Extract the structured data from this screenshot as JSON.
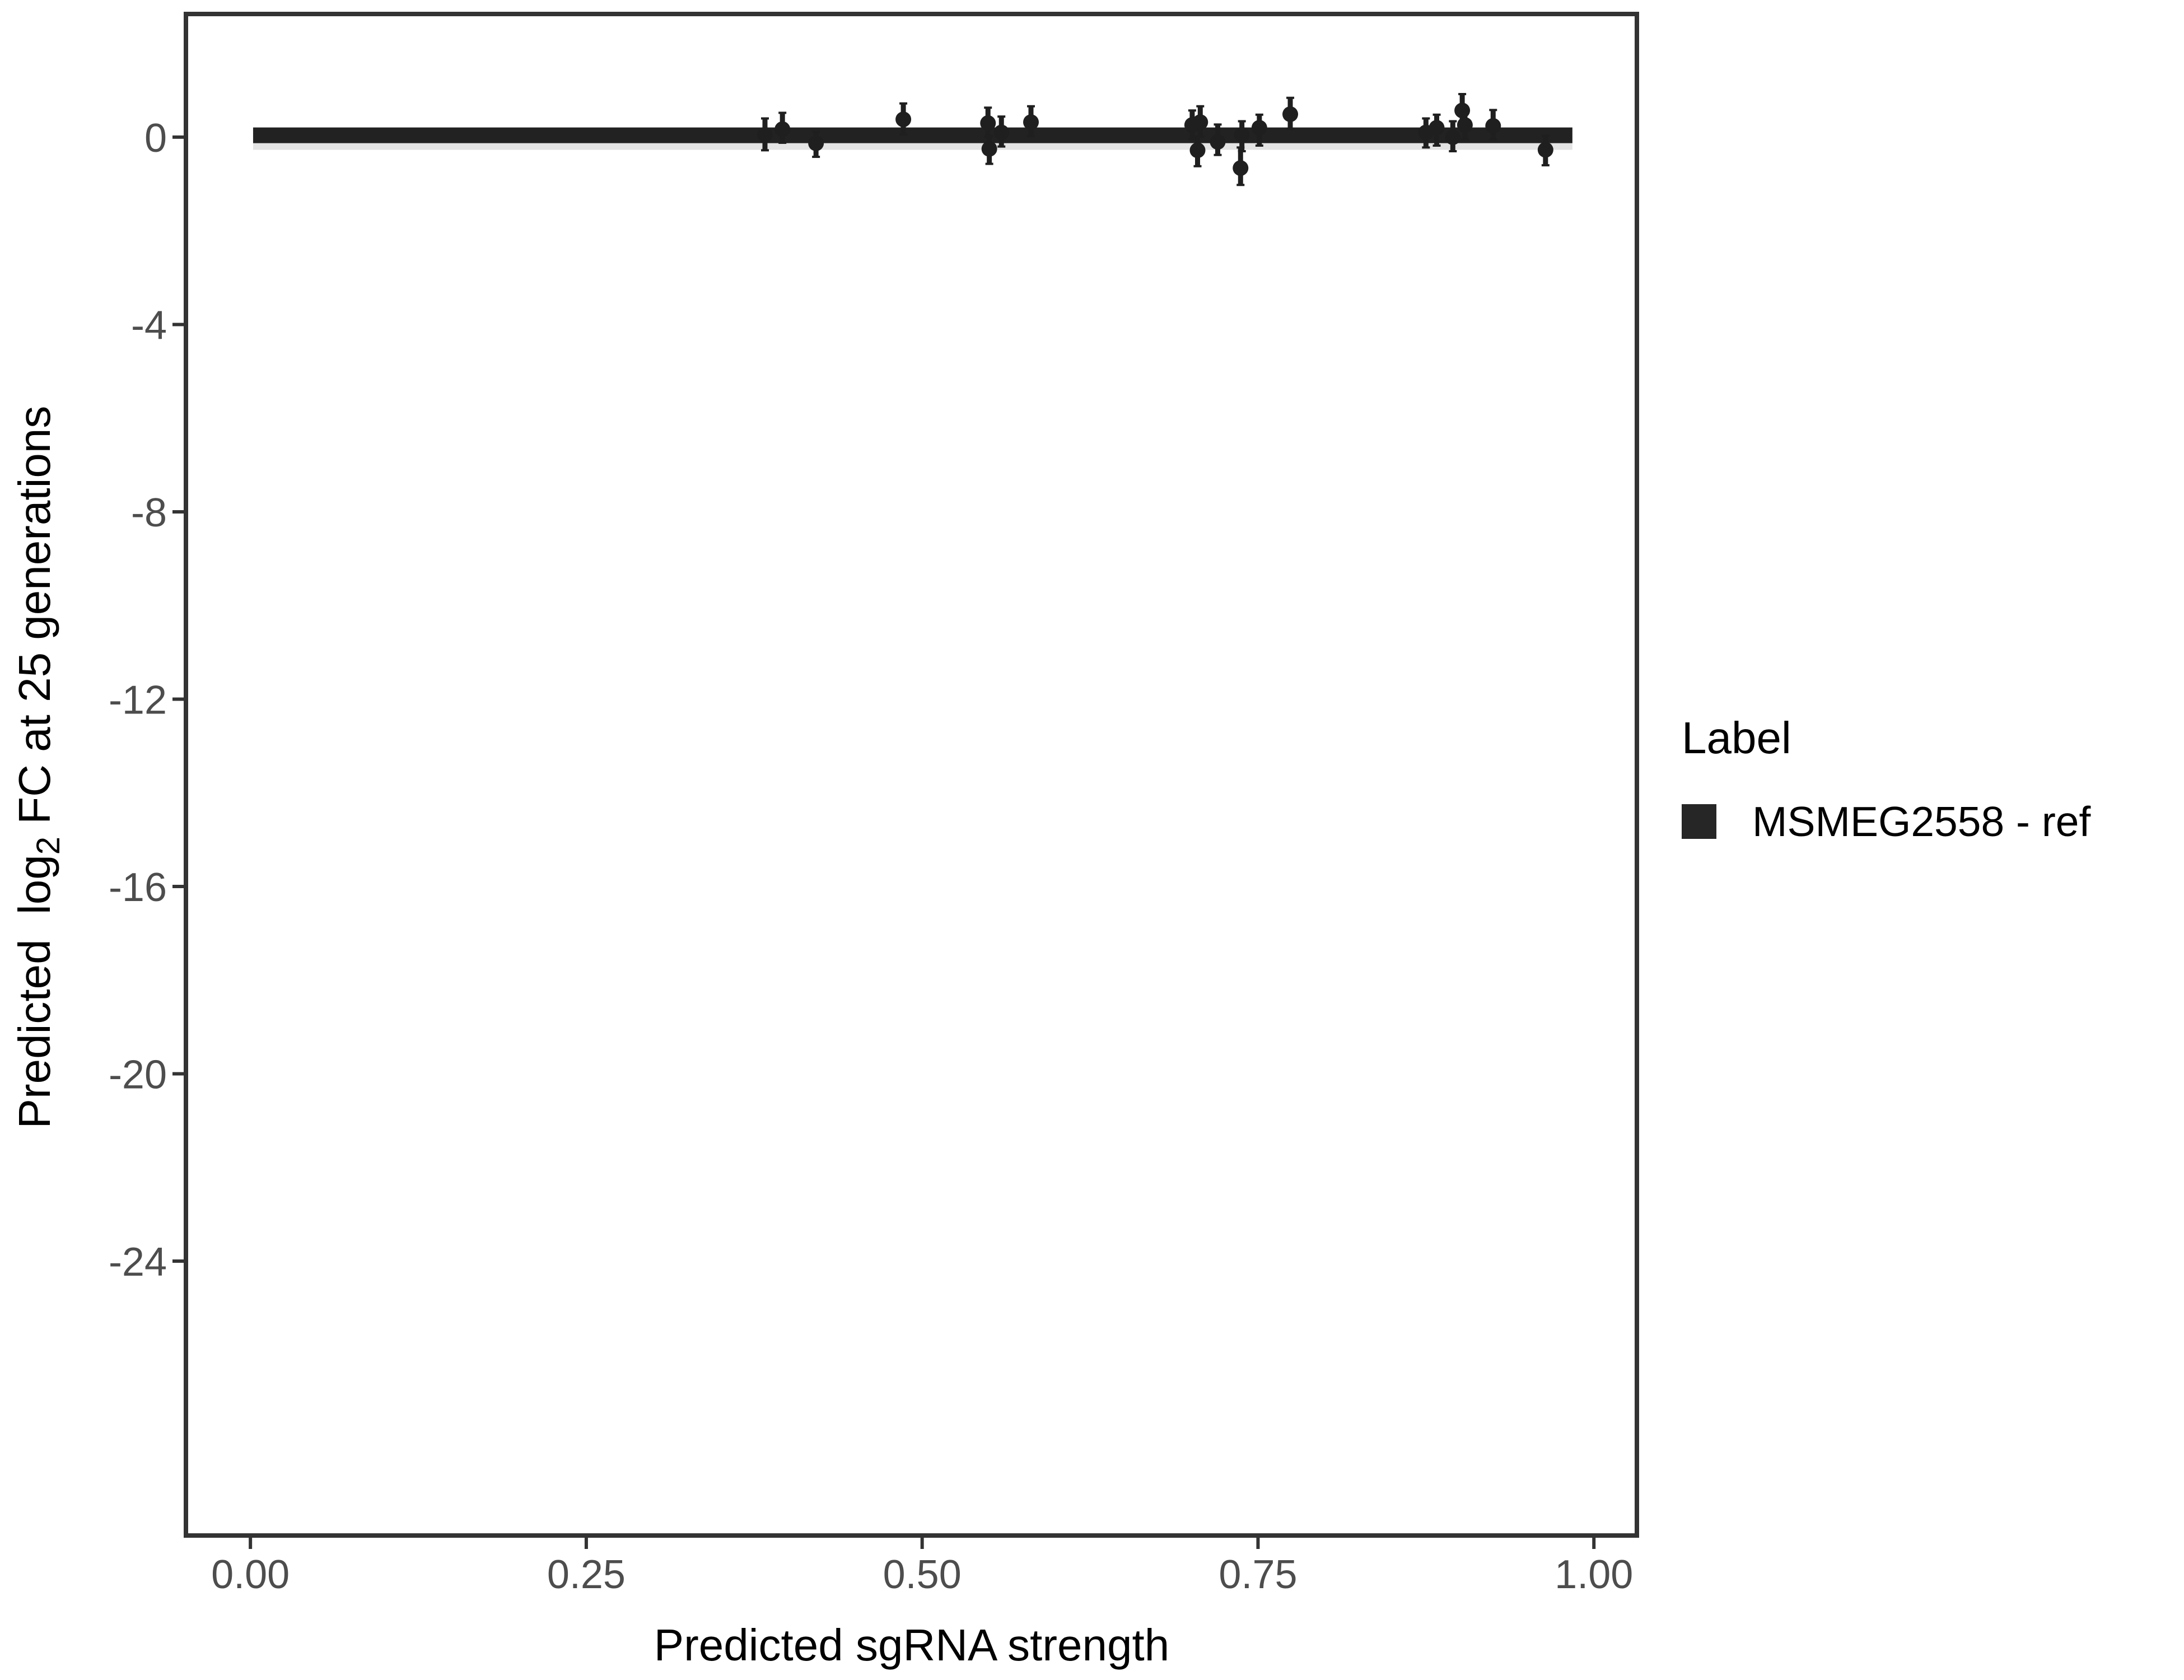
{
  "colors": {
    "background": "#ffffff",
    "panel_border": "#333333",
    "tick_mark": "#333333",
    "tick_label": "#4d4d4d",
    "axis_title": "#000000",
    "point": "#1f1f1f",
    "line": "#222222",
    "ribbon": "#e4e4e4",
    "legend_key": "#262626"
  },
  "chart_data": {
    "type": "scatter",
    "title": "",
    "xlabel": "Predicted sgRNA strength",
    "ylabel": "Predicted log2 FC at 25 generations",
    "ylabel_parts": {
      "prefix": "Predicted  log",
      "sub": "2",
      "suffix": " FC at 25 generations"
    },
    "xlim": [
      -0.048,
      1.032
    ],
    "ylim": [
      -29.86,
      2.63
    ],
    "grid": false,
    "legend_position": "right",
    "x_ticks": {
      "values": [
        0,
        0.25,
        0.5,
        0.75,
        1.0
      ],
      "labels": [
        "0.00",
        "0.25",
        "0.50",
        "0.75",
        "1.00"
      ]
    },
    "y_ticks": {
      "values": [
        0,
        -4,
        -8,
        -12,
        -16,
        -20,
        -24
      ],
      "labels": [
        "0",
        "-4",
        "-8",
        "-12",
        "-16",
        "-20",
        "-24"
      ]
    },
    "legend": {
      "title": "Label",
      "entries": [
        {
          "label": "MSMEG2558 - ref",
          "key": "filled-square"
        }
      ]
    },
    "smooth_line": {
      "x_start": 0.002,
      "x_end": 0.984,
      "y": 0.04,
      "thickness_data_units": 0.33
    },
    "points": [
      {
        "x": 0.383,
        "y": 0.05,
        "ymin": -0.28,
        "ymax": 0.4
      },
      {
        "x": 0.396,
        "y": 0.17,
        "ymin": -0.12,
        "ymax": 0.52
      },
      {
        "x": 0.421,
        "y": -0.13,
        "ymin": -0.42,
        "ymax": 0.12
      },
      {
        "x": 0.486,
        "y": 0.38,
        "ymin": 0.06,
        "ymax": 0.72
      },
      {
        "x": 0.549,
        "y": 0.3,
        "ymin": 0.0,
        "ymax": 0.63
      },
      {
        "x": 0.55,
        "y": -0.25,
        "ymin": -0.57,
        "ymax": 0.03
      },
      {
        "x": 0.559,
        "y": 0.1,
        "ymin": -0.2,
        "ymax": 0.44
      },
      {
        "x": 0.581,
        "y": 0.32,
        "ymin": 0.02,
        "ymax": 0.66
      },
      {
        "x": 0.701,
        "y": 0.26,
        "ymin": -0.04,
        "ymax": 0.57
      },
      {
        "x": 0.705,
        "y": -0.28,
        "ymin": -0.62,
        "ymax": 0.02
      },
      {
        "x": 0.707,
        "y": 0.32,
        "ymin": 0.01,
        "ymax": 0.66
      },
      {
        "x": 0.72,
        "y": -0.1,
        "ymin": -0.38,
        "ymax": 0.27
      },
      {
        "x": 0.737,
        "y": -0.66,
        "ymin": -1.02,
        "ymax": -0.22
      },
      {
        "x": 0.738,
        "y": 0.05,
        "ymin": -0.3,
        "ymax": 0.34
      },
      {
        "x": 0.751,
        "y": 0.2,
        "ymin": -0.18,
        "ymax": 0.48
      },
      {
        "x": 0.774,
        "y": 0.49,
        "ymin": 0.18,
        "ymax": 0.84
      },
      {
        "x": 0.875,
        "y": 0.1,
        "ymin": -0.22,
        "ymax": 0.4
      },
      {
        "x": 0.883,
        "y": 0.2,
        "ymin": -0.18,
        "ymax": 0.48
      },
      {
        "x": 0.895,
        "y": 0.0,
        "ymin": -0.3,
        "ymax": 0.34
      },
      {
        "x": 0.902,
        "y": 0.57,
        "ymin": 0.22,
        "ymax": 0.92
      },
      {
        "x": 0.904,
        "y": 0.26,
        "ymin": -0.05,
        "ymax": 0.57
      },
      {
        "x": 0.925,
        "y": 0.24,
        "ymin": -0.05,
        "ymax": 0.58
      },
      {
        "x": 0.964,
        "y": -0.27,
        "ymin": -0.6,
        "ymax": 0.03
      }
    ]
  }
}
